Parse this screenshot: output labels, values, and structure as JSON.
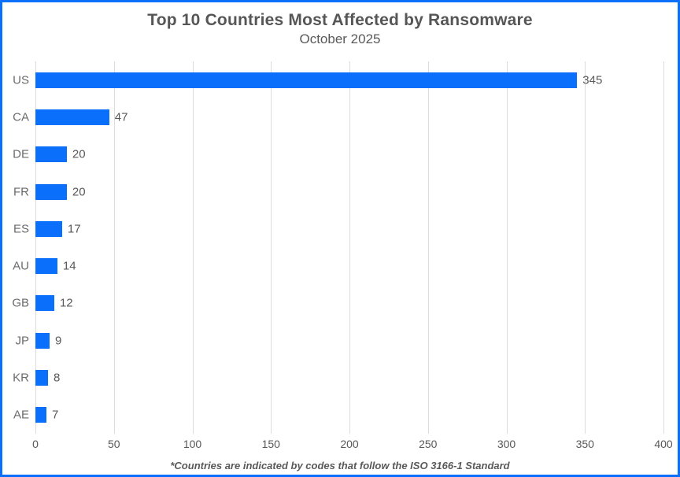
{
  "title": "Top 10 Countries Most Affected by Ransomware",
  "subtitle": "October 2025",
  "footnote": "*Countries are indicated by codes that follow the ISO 3166-1 Standard",
  "colors": {
    "bar": "#0a6ffa",
    "frame_border": "#0a6ffa",
    "gridline": "#dcdcdc",
    "text": "#595959"
  },
  "chart_data": {
    "type": "bar",
    "orientation": "horizontal",
    "title": "Top 10 Countries Most Affected by Ransomware",
    "subtitle": "October 2025",
    "categories": [
      "US",
      "CA",
      "DE",
      "FR",
      "ES",
      "AU",
      "GB",
      "JP",
      "KR",
      "AE"
    ],
    "values": [
      345,
      47,
      20,
      20,
      17,
      14,
      12,
      9,
      8,
      7
    ],
    "data_labels": [
      "345",
      "47",
      "20",
      "20",
      "17",
      "14",
      "12",
      "9",
      "8",
      "7"
    ],
    "xlabel": "",
    "ylabel": "",
    "xlim": [
      0,
      400
    ],
    "xticks": [
      0,
      50,
      100,
      150,
      200,
      250,
      300,
      350,
      400
    ],
    "grid": true,
    "legend": false
  }
}
